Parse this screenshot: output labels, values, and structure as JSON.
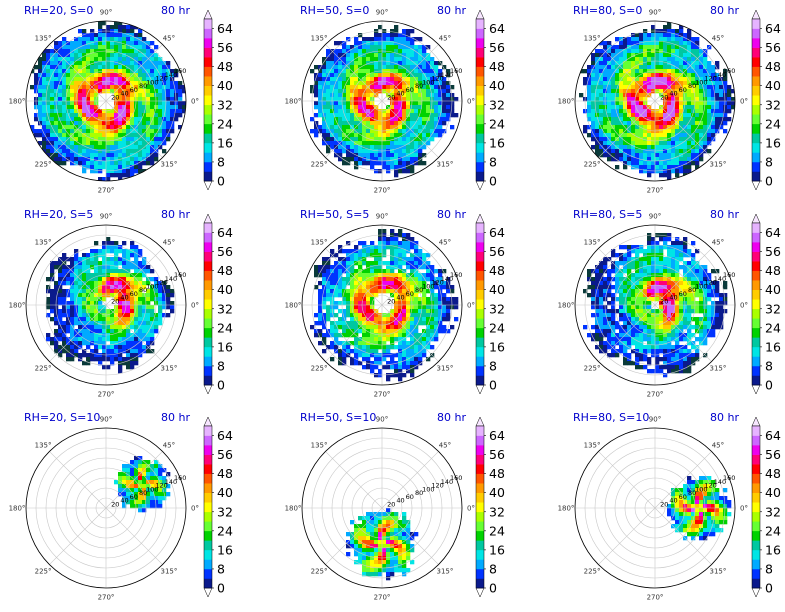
{
  "figure": {
    "panels": [
      {
        "title": "RH=20, S=0",
        "time": "80 hr"
      },
      {
        "title": "RH=50, S=0",
        "time": "80 hr"
      },
      {
        "title": "RH=80, S=0",
        "time": "80 hr"
      },
      {
        "title": "RH=20, S=5",
        "time": "80 hr"
      },
      {
        "title": "RH=50, S=5",
        "time": "80 hr"
      },
      {
        "title": "RH=80, S=5",
        "time": "80 hr"
      },
      {
        "title": "RH=20, S=10",
        "time": "80 hr"
      },
      {
        "title": "RH=50, S=10",
        "time": "80 hr"
      },
      {
        "title": "RH=80, S=10",
        "time": "80 hr"
      }
    ],
    "angle_labels": [
      "90°",
      "45°",
      "0°",
      "315°",
      "270°",
      "225°",
      "180°",
      "135°"
    ],
    "radial_labels": [
      "20",
      "40",
      "60",
      "80",
      "100",
      "120",
      "140",
      "160"
    ],
    "colorbar_ticks": [
      "64",
      "56",
      "48",
      "40",
      "32",
      "24",
      "16",
      "8",
      "0"
    ],
    "colors": {
      "title": "#0000cc",
      "levels": [
        "#0a3a3a",
        "#0b1a8c",
        "#0033ff",
        "#00aaff",
        "#00e5e5",
        "#00c8a0",
        "#00d200",
        "#66ff33",
        "#aaff00",
        "#ffff00",
        "#ffcc00",
        "#ff9900",
        "#ff5500",
        "#ff0000",
        "#ff0077",
        "#ee00ee",
        "#cc66ff",
        "#e6b3ff",
        "#f7e6ff"
      ]
    }
  },
  "chart_data": {
    "type": "heatmap",
    "projection": "polar",
    "layout": "3x3",
    "row_parameter": "S",
    "row_values": [
      0,
      5,
      10
    ],
    "column_parameter": "RH",
    "column_values": [
      20,
      50,
      80
    ],
    "time": "80 hr",
    "theta_ticks_deg": [
      0,
      45,
      90,
      135,
      180,
      225,
      270,
      315
    ],
    "r_ticks": [
      20,
      40,
      60,
      80,
      100,
      120,
      140,
      160
    ],
    "r_range": [
      0,
      160
    ],
    "colorbar": {
      "min": 0,
      "max": 68,
      "ticks": [
        0,
        8,
        16,
        24,
        32,
        40,
        48,
        56,
        64
      ],
      "extend": "both"
    },
    "grid": true,
    "fields": [
      {
        "panel": "RH=20, S=0",
        "pattern": "ring",
        "peak": 56,
        "eye_radius": 0.12,
        "coverage": 0.95,
        "offset": [
          0,
          0
        ]
      },
      {
        "panel": "RH=50, S=0",
        "pattern": "ring",
        "peak": 52,
        "eye_radius": 0.1,
        "coverage": 0.88,
        "offset": [
          0,
          0
        ]
      },
      {
        "panel": "RH=80, S=0",
        "pattern": "ring",
        "peak": 60,
        "eye_radius": 0.1,
        "coverage": 0.93,
        "offset": [
          0,
          0
        ]
      },
      {
        "panel": "RH=20, S=5",
        "pattern": "asym",
        "peak": 56,
        "eye_radius": 0.08,
        "coverage": 0.78,
        "offset": [
          0.05,
          0.02
        ]
      },
      {
        "panel": "RH=50, S=5",
        "pattern": "spiral",
        "peak": 48,
        "eye_radius": 0.12,
        "coverage": 0.88,
        "offset": [
          0.02,
          0.02
        ]
      },
      {
        "panel": "RH=80, S=5",
        "pattern": "asym",
        "peak": 60,
        "eye_radius": 0.06,
        "coverage": 0.85,
        "offset": [
          0.0,
          0.0
        ]
      },
      {
        "panel": "RH=20, S=10",
        "pattern": "sheared",
        "peak": 48,
        "eye_radius": 0.0,
        "coverage": 0.35,
        "offset": [
          0.45,
          0.3
        ]
      },
      {
        "panel": "RH=50, S=10",
        "pattern": "sheared",
        "peak": 56,
        "eye_radius": 0.0,
        "coverage": 0.45,
        "offset": [
          0.0,
          -0.45
        ]
      },
      {
        "panel": "RH=80, S=10",
        "pattern": "sheared",
        "peak": 60,
        "eye_radius": 0.0,
        "coverage": 0.4,
        "offset": [
          0.55,
          0.0
        ]
      }
    ]
  }
}
